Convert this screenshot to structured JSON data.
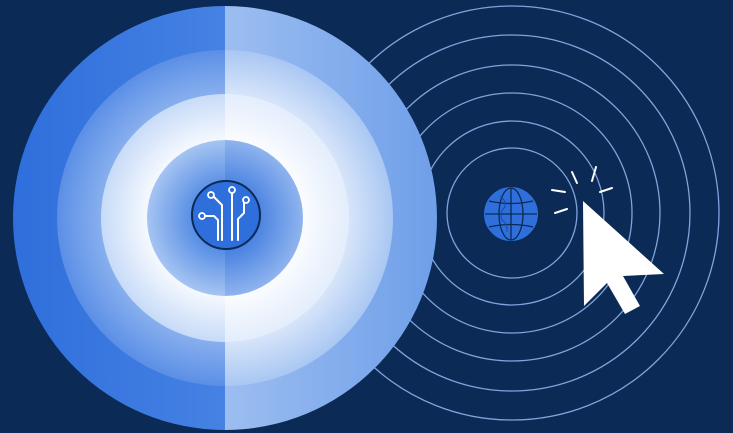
{
  "colors": {
    "background": "#0b2a55",
    "accent_blue": "#2f6fdc",
    "light_blue": "#8fb6f0",
    "pale_blue": "#dbe8fb",
    "white": "#ffffff",
    "wave_line": "#8fb1ea"
  },
  "icons": [
    "circuit-icon",
    "globe-icon",
    "cursor-icon",
    "click-burst-icon"
  ]
}
